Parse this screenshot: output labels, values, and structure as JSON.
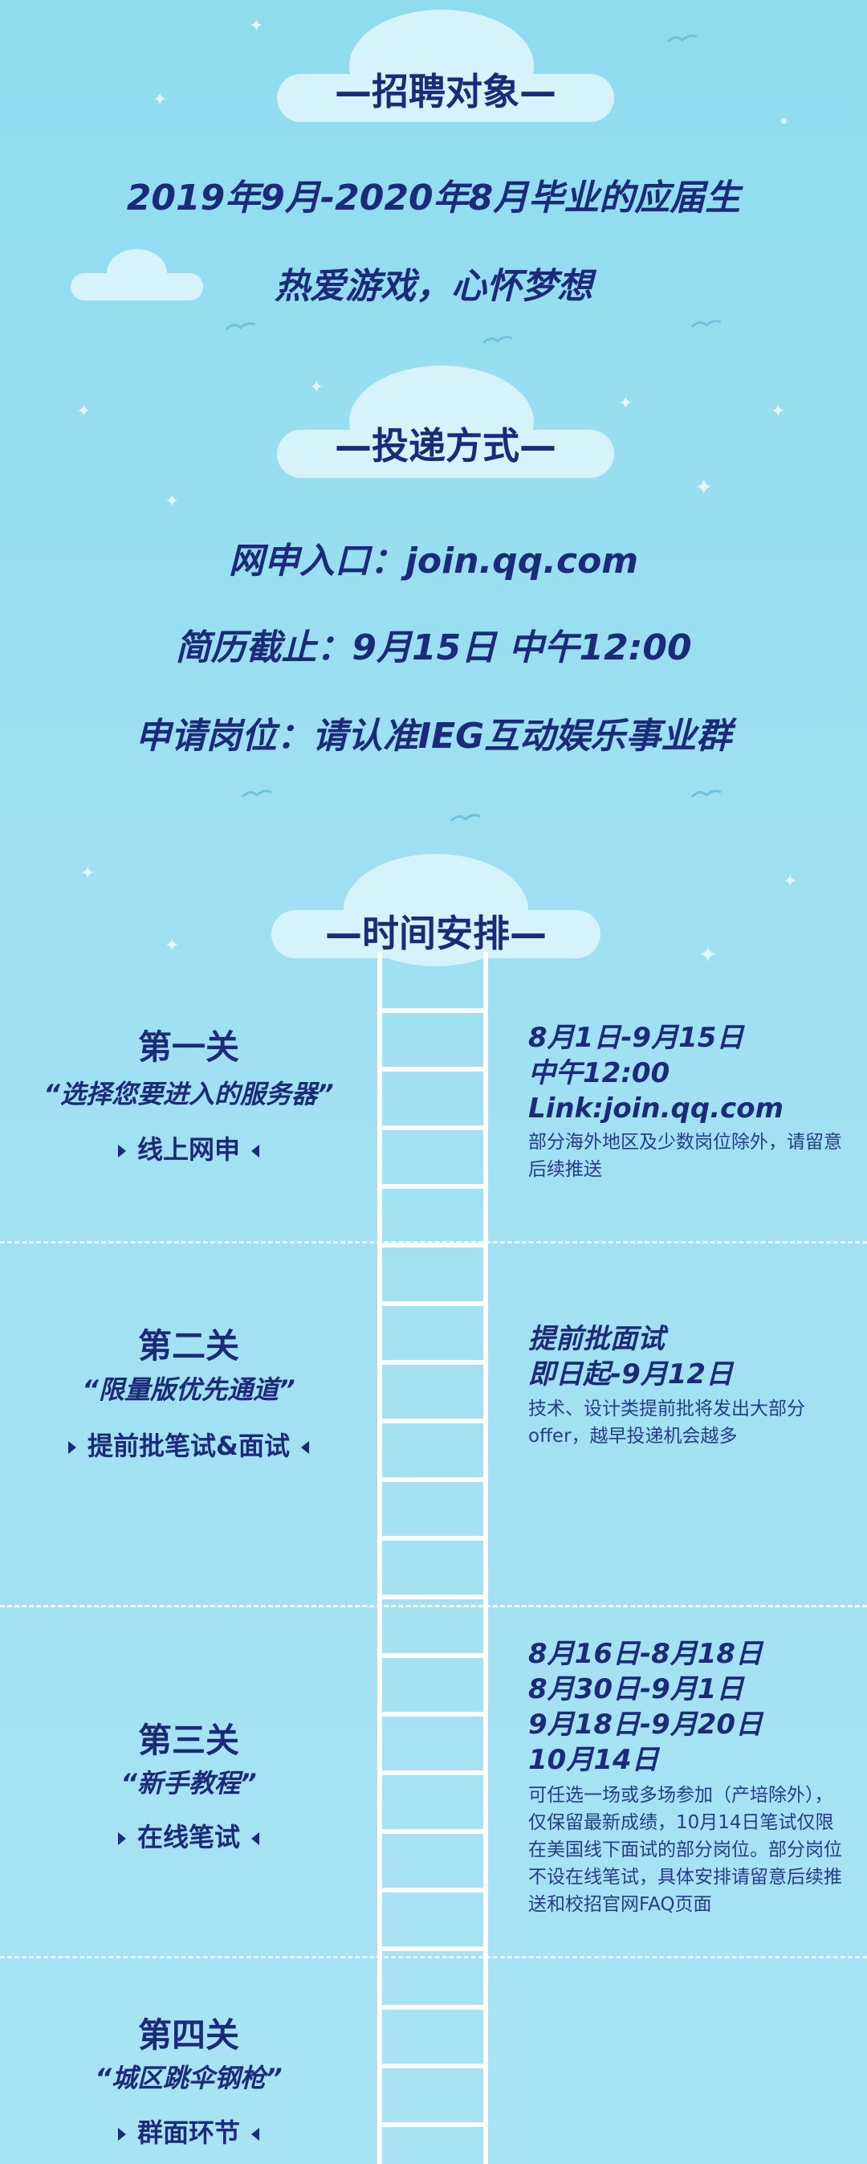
{
  "section1": {
    "title": "—招聘对象—",
    "lines": [
      "2019年9月-2020年8月毕业的应届生",
      "热爱游戏，心怀梦想"
    ]
  },
  "section2": {
    "title": "—投递方式—",
    "lines": [
      "网申入口：join.qq.com",
      "简历截止：9月15日 中午12:00",
      "申请岗位：请认准IEG互动娱乐事业群"
    ]
  },
  "section3": {
    "title": "—时间安排—",
    "stages": [
      {
        "title": "第一关",
        "subtitle": "“选择您要进入的服务器”",
        "tag": "线上网申",
        "info_head": "8月1日-9月15日\n中午12:00\nLink:join.qq.com",
        "info_body": "部分海外地区及少数岗位除外，请留意后续推送"
      },
      {
        "title": "第二关",
        "subtitle": "“限量版优先通道”",
        "tag": "提前批笔试&面试",
        "info_head": "提前批面试\n即日起-9月12日",
        "info_body": "技术、设计类提前批将发出大部分offer，越早投递机会越多"
      },
      {
        "title": "第三关",
        "subtitle": "“新手教程”",
        "tag": "在线笔试",
        "info_head": "8月16日-8月18日\n8月30日-9月1日\n9月18日-9月20日\n10月14日",
        "info_body": "可任选一场或多场参加（产培除外），仅保留最新成绩，10月14日笔试仅限在美国线下面试的部分岗位。部分岗位不设在线笔试，具体安排请留意后续推送和校招官网FAQ页面"
      },
      {
        "title": "第四关",
        "subtitle": "“城区跳伞钢枪”",
        "tag": "群面环节",
        "info_head": "",
        "info_body": ""
      }
    ]
  },
  "colors": {
    "text": "#1c2a7a",
    "cloud": "#d6f2fb",
    "ladder": "#ffffff"
  }
}
